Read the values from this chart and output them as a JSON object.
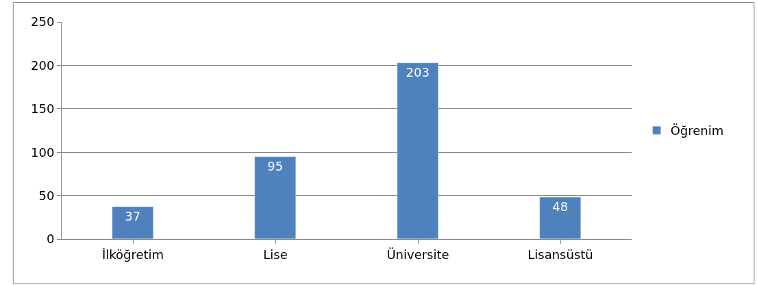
{
  "chart_data": {
    "type": "bar",
    "categories": [
      "İlköğretim",
      "Lise",
      "Üniversite",
      "Lisansüstü"
    ],
    "series": [
      {
        "name": "Öğrenim",
        "color": "#4f81bd",
        "values": [
          37,
          95,
          203,
          48
        ]
      }
    ],
    "ylim": [
      0,
      250
    ],
    "yticks": [
      0,
      50,
      100,
      150,
      200,
      250
    ],
    "grid": "y",
    "legend": "right",
    "data_labels": true
  }
}
